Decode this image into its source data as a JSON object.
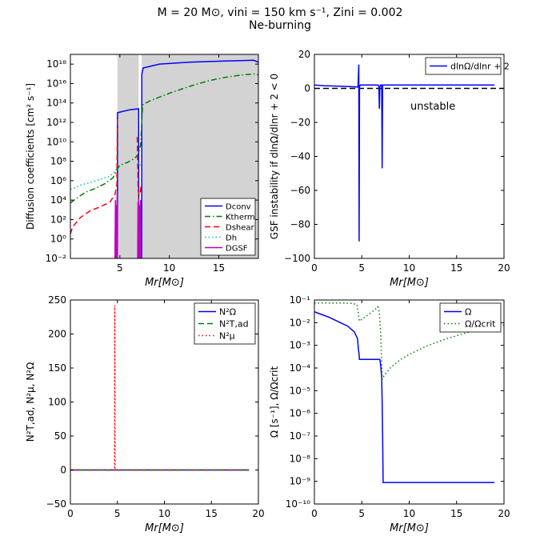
{
  "figure": {
    "title": "M = 20 M⊙, vini = 150 km s⁻¹, Zini = 0.002",
    "subtitle": "Ne-burning"
  },
  "colors": {
    "blue": "#0000ff",
    "green": "#007f00",
    "red": "#ff0000",
    "cyan": "#00bfbf",
    "magenta": "#bf00bf",
    "shade": "#d3d3d3",
    "black": "#000000"
  },
  "chart_data": [
    {
      "id": "diffusion",
      "type": "line",
      "title": "",
      "xlabel": "Mr[M⊙]",
      "ylabel": "Diffusion coefficients [cm² s⁻¹]",
      "yscale": "log",
      "xlim": [
        0,
        19
      ],
      "ylim": [
        -2,
        19
      ],
      "xticks": [
        5,
        10,
        15
      ],
      "xtick_labels": [
        "5",
        "10",
        "15"
      ],
      "yticks": [
        -2,
        0,
        2,
        4,
        6,
        8,
        10,
        12,
        14,
        16,
        18
      ],
      "ytick_labels": [
        "10⁻²",
        "10⁰",
        "10²",
        "10⁴",
        "10⁶",
        "10⁸",
        "10¹⁰",
        "10¹²",
        "10¹⁴",
        "10¹⁶",
        "10¹⁸"
      ],
      "legend": {
        "position": "bottom-right",
        "entries": [
          "Dconv",
          "Ktherm",
          "Dshear",
          "Dh",
          "DGSF"
        ]
      },
      "shaded_regions": [
        [
          4.75,
          6.9
        ],
        [
          7.2,
          19
        ]
      ],
      "series": [
        {
          "name": "Dconv",
          "color": "blue",
          "style": "solid",
          "segments": [
            [
              [
                4.75,
                -2
              ],
              [
                4.76,
                13.0
              ],
              [
                6.0,
                13.3
              ],
              [
                6.9,
                13.4
              ],
              [
                6.91,
                -2
              ]
            ],
            [
              [
                7.2,
                -2
              ],
              [
                7.22,
                17.0
              ],
              [
                7.35,
                17.6
              ],
              [
                9,
                18.0
              ],
              [
                12,
                18.2
              ],
              [
                15,
                18.3
              ],
              [
                17,
                18.35
              ],
              [
                18.5,
                18.4
              ],
              [
                19,
                18.2
              ]
            ]
          ]
        },
        {
          "name": "Ktherm",
          "color": "green",
          "style": "dashdot",
          "segments": [
            [
              [
                0,
                3.7
              ],
              [
                0.5,
                4.1
              ],
              [
                1.5,
                4.8
              ],
              [
                2.5,
                5.2
              ],
              [
                3.5,
                5.7
              ],
              [
                4.3,
                6.3
              ],
              [
                4.7,
                7.1
              ],
              [
                5.0,
                7.6
              ],
              [
                5.8,
                7.9
              ],
              [
                6.5,
                8.3
              ],
              [
                6.9,
                8.8
              ],
              [
                7.1,
                9.7
              ],
              [
                7.3,
                13.8
              ],
              [
                8.0,
                14.2
              ],
              [
                10,
                15.0
              ],
              [
                12,
                15.7
              ],
              [
                14,
                16.3
              ],
              [
                16,
                16.7
              ],
              [
                17.5,
                16.9
              ],
              [
                18.5,
                17.0
              ],
              [
                19,
                16.9
              ]
            ]
          ]
        },
        {
          "name": "Dshear",
          "color": "red",
          "style": "dashed",
          "segments": [
            [
              [
                0,
                0.5
              ],
              [
                0.2,
                1.2
              ],
              [
                1,
                2.2
              ],
              [
                2,
                2.9
              ],
              [
                3,
                3.3
              ],
              [
                4,
                3.8
              ],
              [
                4.5,
                4.6
              ],
              [
                4.7,
                5.6
              ],
              [
                4.75,
                12.5
              ]
            ],
            [
              [
                6.75,
                10.5
              ],
              [
                6.85,
                5.0
              ],
              [
                6.95,
                4.5
              ],
              [
                7.05,
                4.7
              ],
              [
                7.15,
                5.6
              ]
            ]
          ]
        },
        {
          "name": "Dh",
          "color": "cyan",
          "style": "dotted",
          "segments": [
            [
              [
                0,
                5.1
              ],
              [
                0.5,
                5.3
              ],
              [
                1,
                5.55
              ],
              [
                2,
                5.8
              ],
              [
                3,
                6.15
              ],
              [
                4,
                6.45
              ],
              [
                4.75,
                7.3
              ]
            ],
            [
              [
                6.9,
                7.8
              ],
              [
                7.0,
                7.5
              ],
              [
                7.15,
                7.9
              ]
            ]
          ]
        },
        {
          "name": "DGSF",
          "color": "magenta",
          "style": "solid",
          "segments": [
            [
              [
                4.5,
                -2
              ],
              [
                4.55,
                4.0
              ],
              [
                4.6,
                -2
              ],
              [
                4.65,
                3.5
              ],
              [
                4.7,
                -2
              ],
              [
                4.72,
                4.8
              ],
              [
                4.75,
                -2
              ]
            ],
            [
              [
                6.8,
                -2
              ],
              [
                6.83,
                3.8
              ],
              [
                6.86,
                -2
              ],
              [
                6.9,
                4.2
              ],
              [
                6.95,
                -2
              ],
              [
                7.0,
                3.5
              ],
              [
                7.05,
                -2
              ],
              [
                7.1,
                4.0
              ],
              [
                7.15,
                -2
              ]
            ]
          ]
        }
      ]
    },
    {
      "id": "gsf",
      "type": "line",
      "xlabel": "Mr[M⊙]",
      "ylabel": "GSF instability if dlnΩ/dlnr + 2 < 0",
      "xlim": [
        0,
        20
      ],
      "ylim": [
        -100,
        20
      ],
      "xticks": [
        0,
        5,
        10,
        15,
        20
      ],
      "xtick_labels": [
        "0",
        "5",
        "10",
        "15",
        "20"
      ],
      "yticks": [
        -100,
        -80,
        -60,
        -40,
        -20,
        0,
        20
      ],
      "ytick_labels": [
        "−100",
        "−80",
        "−60",
        "−40",
        "−20",
        "0",
        "20"
      ],
      "legend": {
        "position": "top-right",
        "entries": [
          "dlnΩ/dlnr + 2"
        ]
      },
      "annotation": "unstable",
      "annotation_at": [
        12.5,
        -4
      ],
      "reference_line": {
        "y": 0,
        "color": "black",
        "style": "dashed",
        "x": [
          0,
          20
        ]
      },
      "series": [
        {
          "name": "dlnΩ/dlnr + 2",
          "color": "blue",
          "style": "solid",
          "segments": [
            [
              [
                0,
                2.0
              ],
              [
                1,
                1.6
              ],
              [
                2,
                1.4
              ],
              [
                3,
                1.2
              ],
              [
                4,
                1.0
              ],
              [
                4.6,
                0.8
              ],
              [
                4.68,
                14
              ],
              [
                4.72,
                -90
              ],
              [
                4.76,
                1.2
              ],
              [
                4.85,
                2.0
              ],
              [
                6.7,
                2.0
              ],
              [
                6.8,
                1.5
              ],
              [
                6.85,
                -12
              ],
              [
                6.9,
                1.0
              ],
              [
                7.0,
                2.0
              ],
              [
                7.1,
                2.0
              ],
              [
                7.15,
                -47
              ],
              [
                7.2,
                2.0
              ],
              [
                19,
                2.0
              ]
            ]
          ]
        }
      ]
    },
    {
      "id": "brunt",
      "type": "line",
      "xlabel": "Mr[M⊙]",
      "ylabel": "N²T,ad, N²μ, N²Ω",
      "xlim": [
        0,
        20
      ],
      "ylim": [
        -50,
        250
      ],
      "xticks": [
        0,
        5,
        10,
        15,
        20
      ],
      "xtick_labels": [
        "0",
        "5",
        "10",
        "15",
        "20"
      ],
      "yticks": [
        -50,
        0,
        50,
        100,
        150,
        200,
        250
      ],
      "ytick_labels": [
        "−50",
        "0",
        "50",
        "100",
        "150",
        "200",
        "250"
      ],
      "legend": {
        "position": "top-right",
        "entries": [
          "N²Ω",
          "N²T,ad",
          "N²μ"
        ]
      },
      "series": [
        {
          "name": "N²Ω",
          "color": "blue",
          "style": "solid",
          "segments": [
            [
              [
                0,
                0
              ],
              [
                19,
                0
              ]
            ]
          ]
        },
        {
          "name": "N²T,ad",
          "color": "green",
          "style": "dashed",
          "segments": [
            [
              [
                0,
                0
              ],
              [
                19,
                0
              ]
            ]
          ]
        },
        {
          "name": "N²μ",
          "color": "red",
          "style": "dotted",
          "segments": [
            [
              [
                0,
                0
              ],
              [
                4.7,
                0
              ],
              [
                4.72,
                242
              ],
              [
                4.76,
                0
              ],
              [
                19,
                0
              ]
            ]
          ]
        }
      ]
    },
    {
      "id": "omega",
      "type": "line",
      "xlabel": "Mr[M⊙]",
      "ylabel": "Ω [s⁻¹], Ω/Ωcrit",
      "yscale": "log",
      "xlim": [
        0,
        20
      ],
      "ylim": [
        -10,
        -1
      ],
      "xticks": [
        0,
        5,
        10,
        15,
        20
      ],
      "xtick_labels": [
        "0",
        "5",
        "10",
        "15",
        "20"
      ],
      "yticks": [
        -10,
        -9,
        -8,
        -7,
        -6,
        -5,
        -4,
        -3,
        -2,
        -1
      ],
      "ytick_labels": [
        "10⁻¹⁰",
        "10⁻⁹",
        "10⁻⁸",
        "10⁻⁷",
        "10⁻⁶",
        "10⁻⁵",
        "10⁻⁴",
        "10⁻³",
        "10⁻²",
        "10⁻¹"
      ],
      "legend": {
        "position": "top-right",
        "entries": [
          "Ω",
          "Ω/Ωcrit"
        ]
      },
      "series": [
        {
          "name": "Ω",
          "color": "blue",
          "style": "solid",
          "segments": [
            [
              [
                0,
                -1.52
              ],
              [
                0.5,
                -1.6
              ],
              [
                1.5,
                -1.75
              ],
              [
                2.5,
                -1.95
              ],
              [
                3.5,
                -2.15
              ],
              [
                4.2,
                -2.4
              ],
              [
                4.55,
                -2.7
              ],
              [
                4.65,
                -3.2
              ],
              [
                4.72,
                -3.4
              ],
              [
                4.75,
                -3.62
              ],
              [
                6.9,
                -3.62
              ],
              [
                7.0,
                -3.9
              ],
              [
                7.1,
                -4.4
              ],
              [
                7.15,
                -5.5
              ],
              [
                7.2,
                -7.0
              ],
              [
                7.25,
                -9.05
              ],
              [
                19,
                -9.05
              ]
            ]
          ]
        },
        {
          "name": "Ω/Ωcrit",
          "color": "green",
          "style": "dotted",
          "segments": [
            [
              [
                0,
                -1.13
              ],
              [
                1,
                -1.13
              ],
              [
                2,
                -1.13
              ],
              [
                3,
                -1.13
              ],
              [
                4,
                -1.15
              ],
              [
                4.5,
                -1.2
              ],
              [
                4.75,
                -1.93
              ],
              [
                5.5,
                -1.7
              ],
              [
                6.3,
                -1.45
              ],
              [
                6.7,
                -1.3
              ],
              [
                6.85,
                -1.55
              ],
              [
                7.0,
                -2.5
              ],
              [
                7.15,
                -4.5
              ],
              [
                7.4,
                -4.3
              ],
              [
                8,
                -4.0
              ],
              [
                9,
                -3.65
              ],
              [
                10,
                -3.4
              ],
              [
                12,
                -3.0
              ],
              [
                14,
                -2.7
              ],
              [
                16,
                -2.45
              ],
              [
                18,
                -2.25
              ],
              [
                20,
                -2.1
              ]
            ]
          ]
        }
      ]
    }
  ]
}
